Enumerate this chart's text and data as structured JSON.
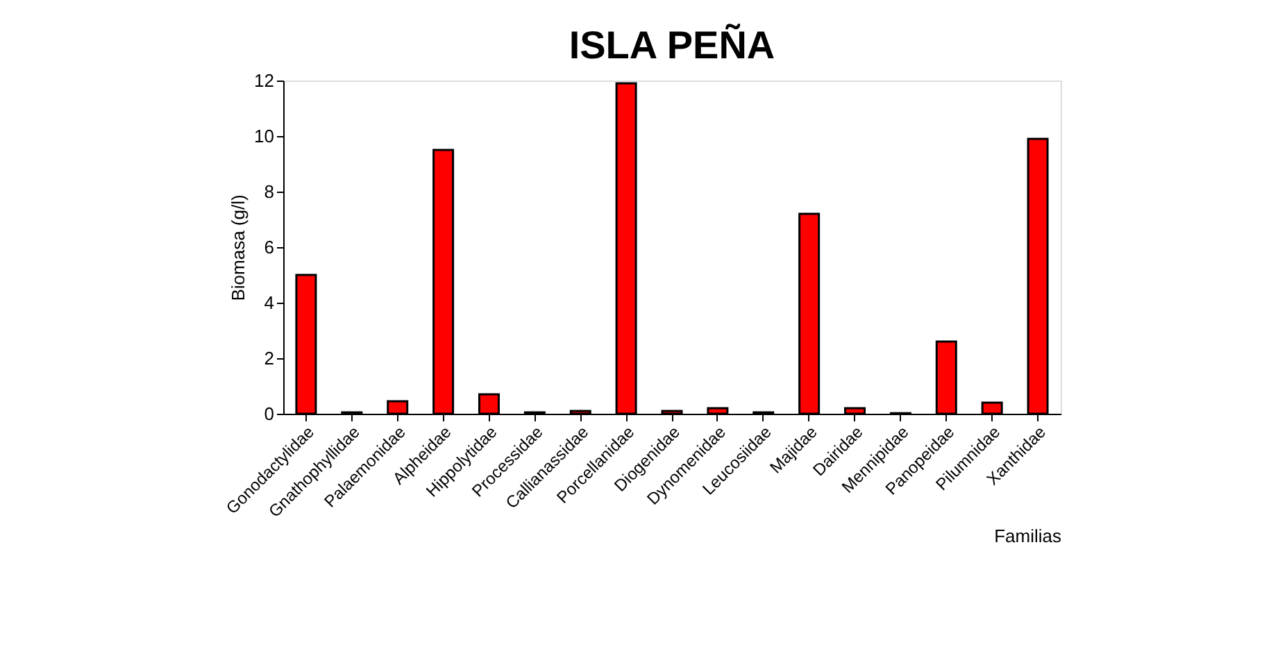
{
  "chart_data": {
    "type": "bar",
    "title": "ISLA PEÑA",
    "xlabel": "Familias",
    "ylabel": "Biomasa (g/l)",
    "categories": [
      "Gonodactylidae",
      "Gnathophyllidae",
      "Palaemonidae",
      "Alpheidae",
      "Hippolytidae",
      "Processidae",
      "Callianassidae",
      "Porcellanidae",
      "Diogenidae",
      "Dynomenidae",
      "Leucosiidae",
      "Majidae",
      "Dairidae",
      "Mennipidae",
      "Panopeidae",
      "Pilumnidae",
      "Xanthidae"
    ],
    "values": [
      5.0,
      0.05,
      0.45,
      9.5,
      0.7,
      0.05,
      0.1,
      11.9,
      0.1,
      0.2,
      0.05,
      7.2,
      0.2,
      0.02,
      2.6,
      0.4,
      9.9
    ],
    "color": "#ff0000",
    "ylim": [
      0,
      12
    ],
    "yticks": [
      0,
      2,
      4,
      6,
      8,
      10,
      12
    ],
    "grid": false
  }
}
